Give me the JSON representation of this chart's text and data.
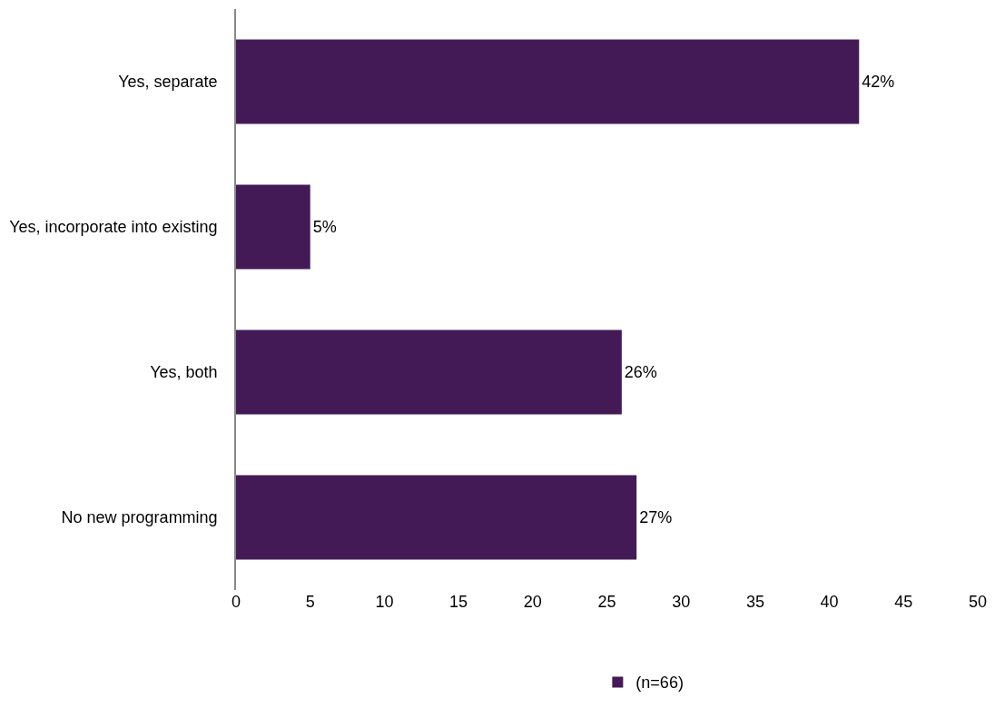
{
  "chart_data": {
    "type": "bar",
    "orientation": "horizontal",
    "categories": [
      "Yes, separate",
      "Yes, incorporate into existing",
      "Yes, both",
      "No new programming"
    ],
    "series": [
      {
        "name": "(n=66)",
        "color": "#441a56",
        "values": [
          42,
          5,
          26,
          27
        ],
        "value_labels": [
          "42%",
          "5%",
          "26%",
          "27%"
        ]
      }
    ],
    "xlim": [
      0,
      50
    ],
    "xticks": [
      0,
      5,
      10,
      15,
      20,
      25,
      30,
      35,
      40,
      45,
      50
    ],
    "legend": "bottom"
  }
}
